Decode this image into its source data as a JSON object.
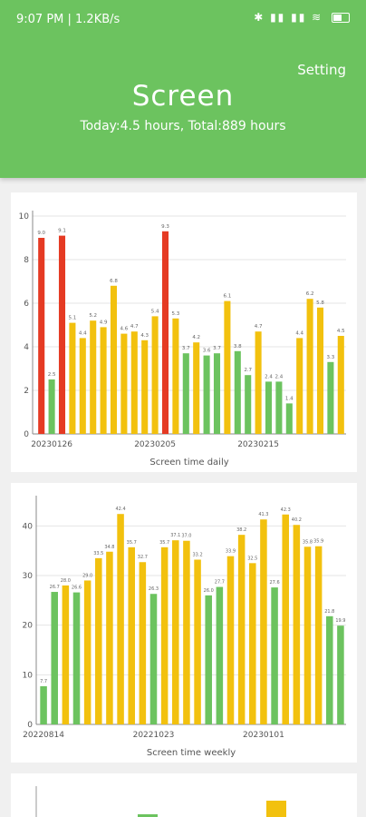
{
  "status_bar": {
    "time": "9:07 PM | 1.2KB/s",
    "icons": "✱ ▮▮ ▮▮ ≋"
  },
  "header": {
    "setting_label": "Setting",
    "title": "Screen",
    "subtitle": "Today:4.5 hours, Total:889 hours"
  },
  "colors": {
    "green": "#6cc35f",
    "yellow": "#f2c10e",
    "red": "#e53a23"
  },
  "chart_data": [
    {
      "type": "bar",
      "title": "Screen time daily",
      "ylim": [
        0,
        10
      ],
      "yticks": [
        0,
        2,
        4,
        6,
        8,
        10
      ],
      "xticks": [
        {
          "index": 1,
          "label": "20230126"
        },
        {
          "index": 11,
          "label": "20230205"
        },
        {
          "index": 21,
          "label": "20230215"
        }
      ],
      "colors": [
        "red",
        "green",
        "red",
        "yellow",
        "yellow",
        "yellow",
        "yellow",
        "yellow",
        "yellow",
        "yellow",
        "yellow",
        "yellow",
        "red",
        "yellow",
        "green",
        "yellow",
        "green",
        "green",
        "yellow",
        "green",
        "green",
        "yellow",
        "green",
        "green",
        "green",
        "yellow",
        "yellow",
        "yellow",
        "green",
        "yellow"
      ],
      "labels": [
        "9.0",
        "2.5",
        "9.1",
        "5.1",
        "4.4",
        "5.2",
        "4.9",
        "6.8",
        "4.6",
        "4.7",
        "4.3",
        "5.4",
        "9.3",
        "5.3",
        "3.7",
        "4.2",
        "3.6",
        "3.7",
        "6.1",
        "3.8",
        "2.7",
        "4.7",
        "2.4",
        "2.4",
        "1.4",
        "4.4",
        "6.2",
        "5.8",
        "3.3",
        "4.5"
      ],
      "values": [
        9.0,
        2.5,
        9.1,
        5.1,
        4.4,
        5.2,
        4.9,
        6.8,
        4.6,
        4.7,
        4.3,
        5.4,
        9.3,
        5.3,
        3.7,
        4.2,
        3.6,
        3.7,
        6.1,
        3.8,
        2.7,
        4.7,
        2.4,
        2.4,
        1.4,
        4.4,
        6.2,
        5.8,
        3.3,
        4.5
      ],
      "grid": true
    },
    {
      "type": "bar",
      "title": "Screen time weekly",
      "ylim": [
        0,
        45
      ],
      "yticks": [
        0,
        10,
        20,
        30,
        40
      ],
      "xticks": [
        {
          "index": 0,
          "label": "20220814"
        },
        {
          "index": 10,
          "label": "20221023"
        },
        {
          "index": 20,
          "label": "20230101"
        }
      ],
      "colors": [
        "green",
        "green",
        "yellow",
        "green",
        "yellow",
        "yellow",
        "yellow",
        "yellow",
        "yellow",
        "yellow",
        "green",
        "yellow",
        "yellow",
        "yellow",
        "yellow",
        "green",
        "green",
        "yellow",
        "yellow",
        "yellow",
        "yellow",
        "green",
        "yellow",
        "yellow",
        "yellow",
        "yellow",
        "green",
        "green"
      ],
      "labels": [
        "7.7",
        "26.7",
        "28.0",
        "26.6",
        "29.0",
        "33.5",
        "34.8",
        "42.4",
        "35.7",
        "32.7",
        "26.3",
        "35.7",
        "37.1",
        "37.0",
        "33.2",
        "26.0",
        "27.7",
        "33.9",
        "38.2",
        "32.5",
        "41.3",
        "27.6",
        "42.3",
        "40.2",
        "35.8",
        "35.9",
        "21.8",
        "19.9"
      ],
      "values": [
        7.7,
        26.7,
        28.0,
        26.6,
        29.0,
        33.5,
        34.8,
        42.4,
        35.7,
        32.7,
        26.3,
        35.7,
        37.1,
        37.0,
        33.2,
        26.0,
        27.7,
        33.9,
        38.2,
        32.5,
        41.3,
        27.6,
        42.3,
        40.2,
        35.8,
        35.9,
        21.8,
        19.9
      ],
      "grid": true
    }
  ]
}
